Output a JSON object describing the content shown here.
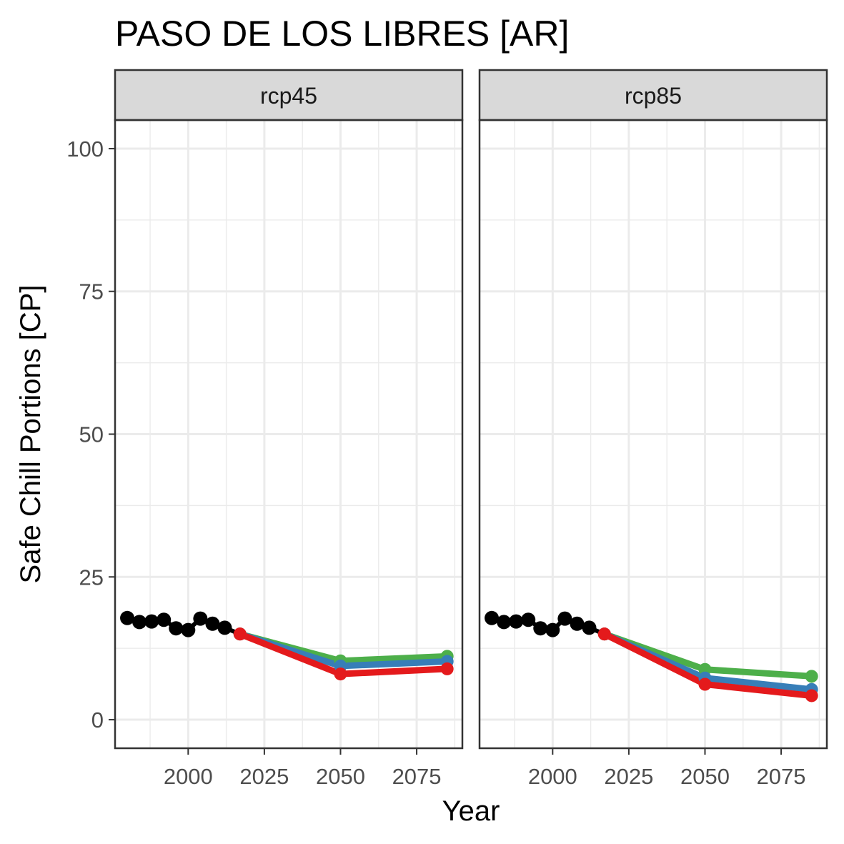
{
  "chart_data": {
    "type": "line",
    "title": "PASO DE LOS LIBRES [AR]",
    "xlabel": "Year",
    "ylabel": "Safe Chill Portions [CP]",
    "xlim": [
      1976,
      2090
    ],
    "ylim": [
      -5,
      105
    ],
    "x_ticks": [
      2000,
      2025,
      2050,
      2075
    ],
    "x_tick_labels": [
      "2000",
      "2025",
      "2050",
      "2075"
    ],
    "y_ticks": [
      0,
      25,
      50,
      75,
      100
    ],
    "y_tick_labels": [
      "0",
      "25",
      "50",
      "75",
      "100"
    ],
    "grid": true,
    "legend": "none",
    "colors": {
      "historic": "#000000",
      "green": "#4DAF4A",
      "blue": "#377EB8",
      "red": "#E41A1C",
      "strip_fill": "#D9D9D9",
      "grid": "#EBEBEB",
      "panel_border": "#333333"
    },
    "panels": [
      {
        "label": "rcp45",
        "historic": {
          "x": [
            1980,
            1984,
            1988,
            1992,
            1996,
            2000,
            2004,
            2008,
            2012
          ],
          "y": [
            17.8,
            17.1,
            17.2,
            17.5,
            16.0,
            15.7,
            17.7,
            16.8,
            16.1
          ]
        },
        "series": [
          {
            "color": "green",
            "x": [
              2017,
              2050,
              2085
            ],
            "y": [
              15.0,
              10.3,
              11.1
            ]
          },
          {
            "color": "blue",
            "x": [
              2017,
              2050,
              2085
            ],
            "y": [
              15.0,
              9.4,
              10.2
            ]
          },
          {
            "color": "red",
            "x": [
              2017,
              2050,
              2085
            ],
            "y": [
              15.0,
              8.0,
              8.9
            ]
          }
        ]
      },
      {
        "label": "rcp85",
        "historic": {
          "x": [
            1980,
            1984,
            1988,
            1992,
            1996,
            2000,
            2004,
            2008,
            2012
          ],
          "y": [
            17.8,
            17.1,
            17.2,
            17.5,
            16.0,
            15.7,
            17.7,
            16.8,
            16.1
          ]
        },
        "series": [
          {
            "color": "green",
            "x": [
              2017,
              2050,
              2085
            ],
            "y": [
              15.0,
              8.8,
              7.6
            ]
          },
          {
            "color": "blue",
            "x": [
              2017,
              2050,
              2085
            ],
            "y": [
              15.0,
              7.3,
              5.3
            ]
          },
          {
            "color": "red",
            "x": [
              2017,
              2050,
              2085
            ],
            "y": [
              15.0,
              6.2,
              4.2
            ]
          }
        ]
      }
    ]
  }
}
